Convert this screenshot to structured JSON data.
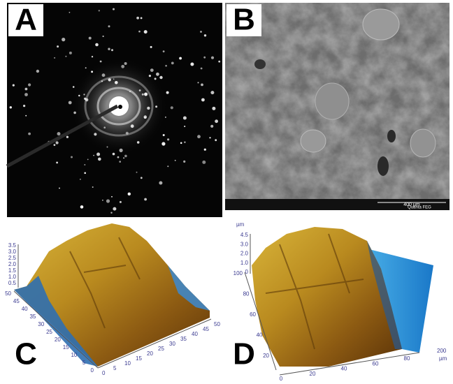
{
  "panels": [
    {
      "label": "A"
    },
    {
      "label": "B",
      "scale_bar": "400 µm",
      "instrument": "Quanta FEG"
    },
    {
      "label": "C",
      "x_axis_ticks": [
        "0",
        "5",
        "10",
        "15",
        "20",
        "25",
        "30",
        "35",
        "40",
        "45",
        "50"
      ],
      "y_axis_ticks": [
        "50",
        "45",
        "40",
        "35",
        "30",
        "25",
        "20",
        "15",
        "10",
        "5",
        "0"
      ],
      "z_axis_ticks": [
        "3.5",
        "3.0",
        "2.5",
        "2.0",
        "1.5",
        "1.0",
        "0.5"
      ]
    },
    {
      "label": "D",
      "x_axis_ticks": [
        "0",
        "20",
        "40",
        "60",
        "80"
      ],
      "x_axis_end": "200",
      "unit": "µm",
      "y_axis_ticks": [
        "100",
        "80",
        "60",
        "40",
        "20"
      ],
      "z_axis_ticks": [
        "4.5",
        "3.0",
        "2.0",
        "1.0",
        "0"
      ]
    }
  ]
}
